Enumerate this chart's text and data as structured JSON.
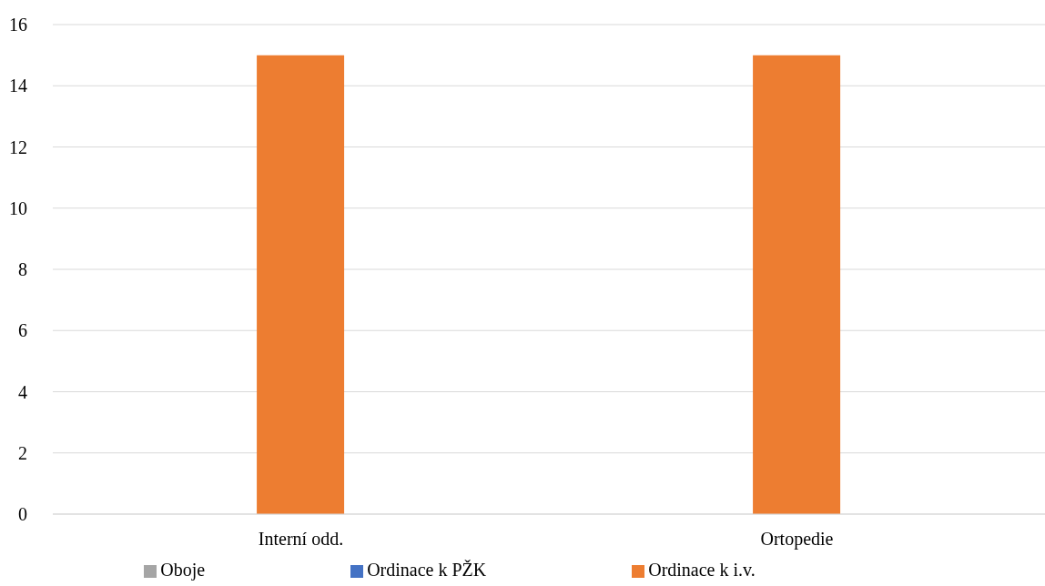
{
  "chart_data": {
    "type": "bar",
    "categories": [
      "Interní odd.",
      "Ortopedie"
    ],
    "series": [
      {
        "name": "Ordinace k PŽK",
        "color": "#4472c4",
        "values": [
          0,
          0
        ]
      },
      {
        "name": "Ordinace k i.v.",
        "color": "#ed7d31",
        "values": [
          15,
          15
        ]
      },
      {
        "name": "Oboje",
        "color": "#a5a5a5",
        "values": [
          0,
          0
        ]
      }
    ],
    "ylim": [
      0,
      16
    ],
    "yticks": [
      0,
      2,
      4,
      6,
      8,
      10,
      12,
      14,
      16
    ],
    "grid": "y",
    "legend": "bottom"
  }
}
